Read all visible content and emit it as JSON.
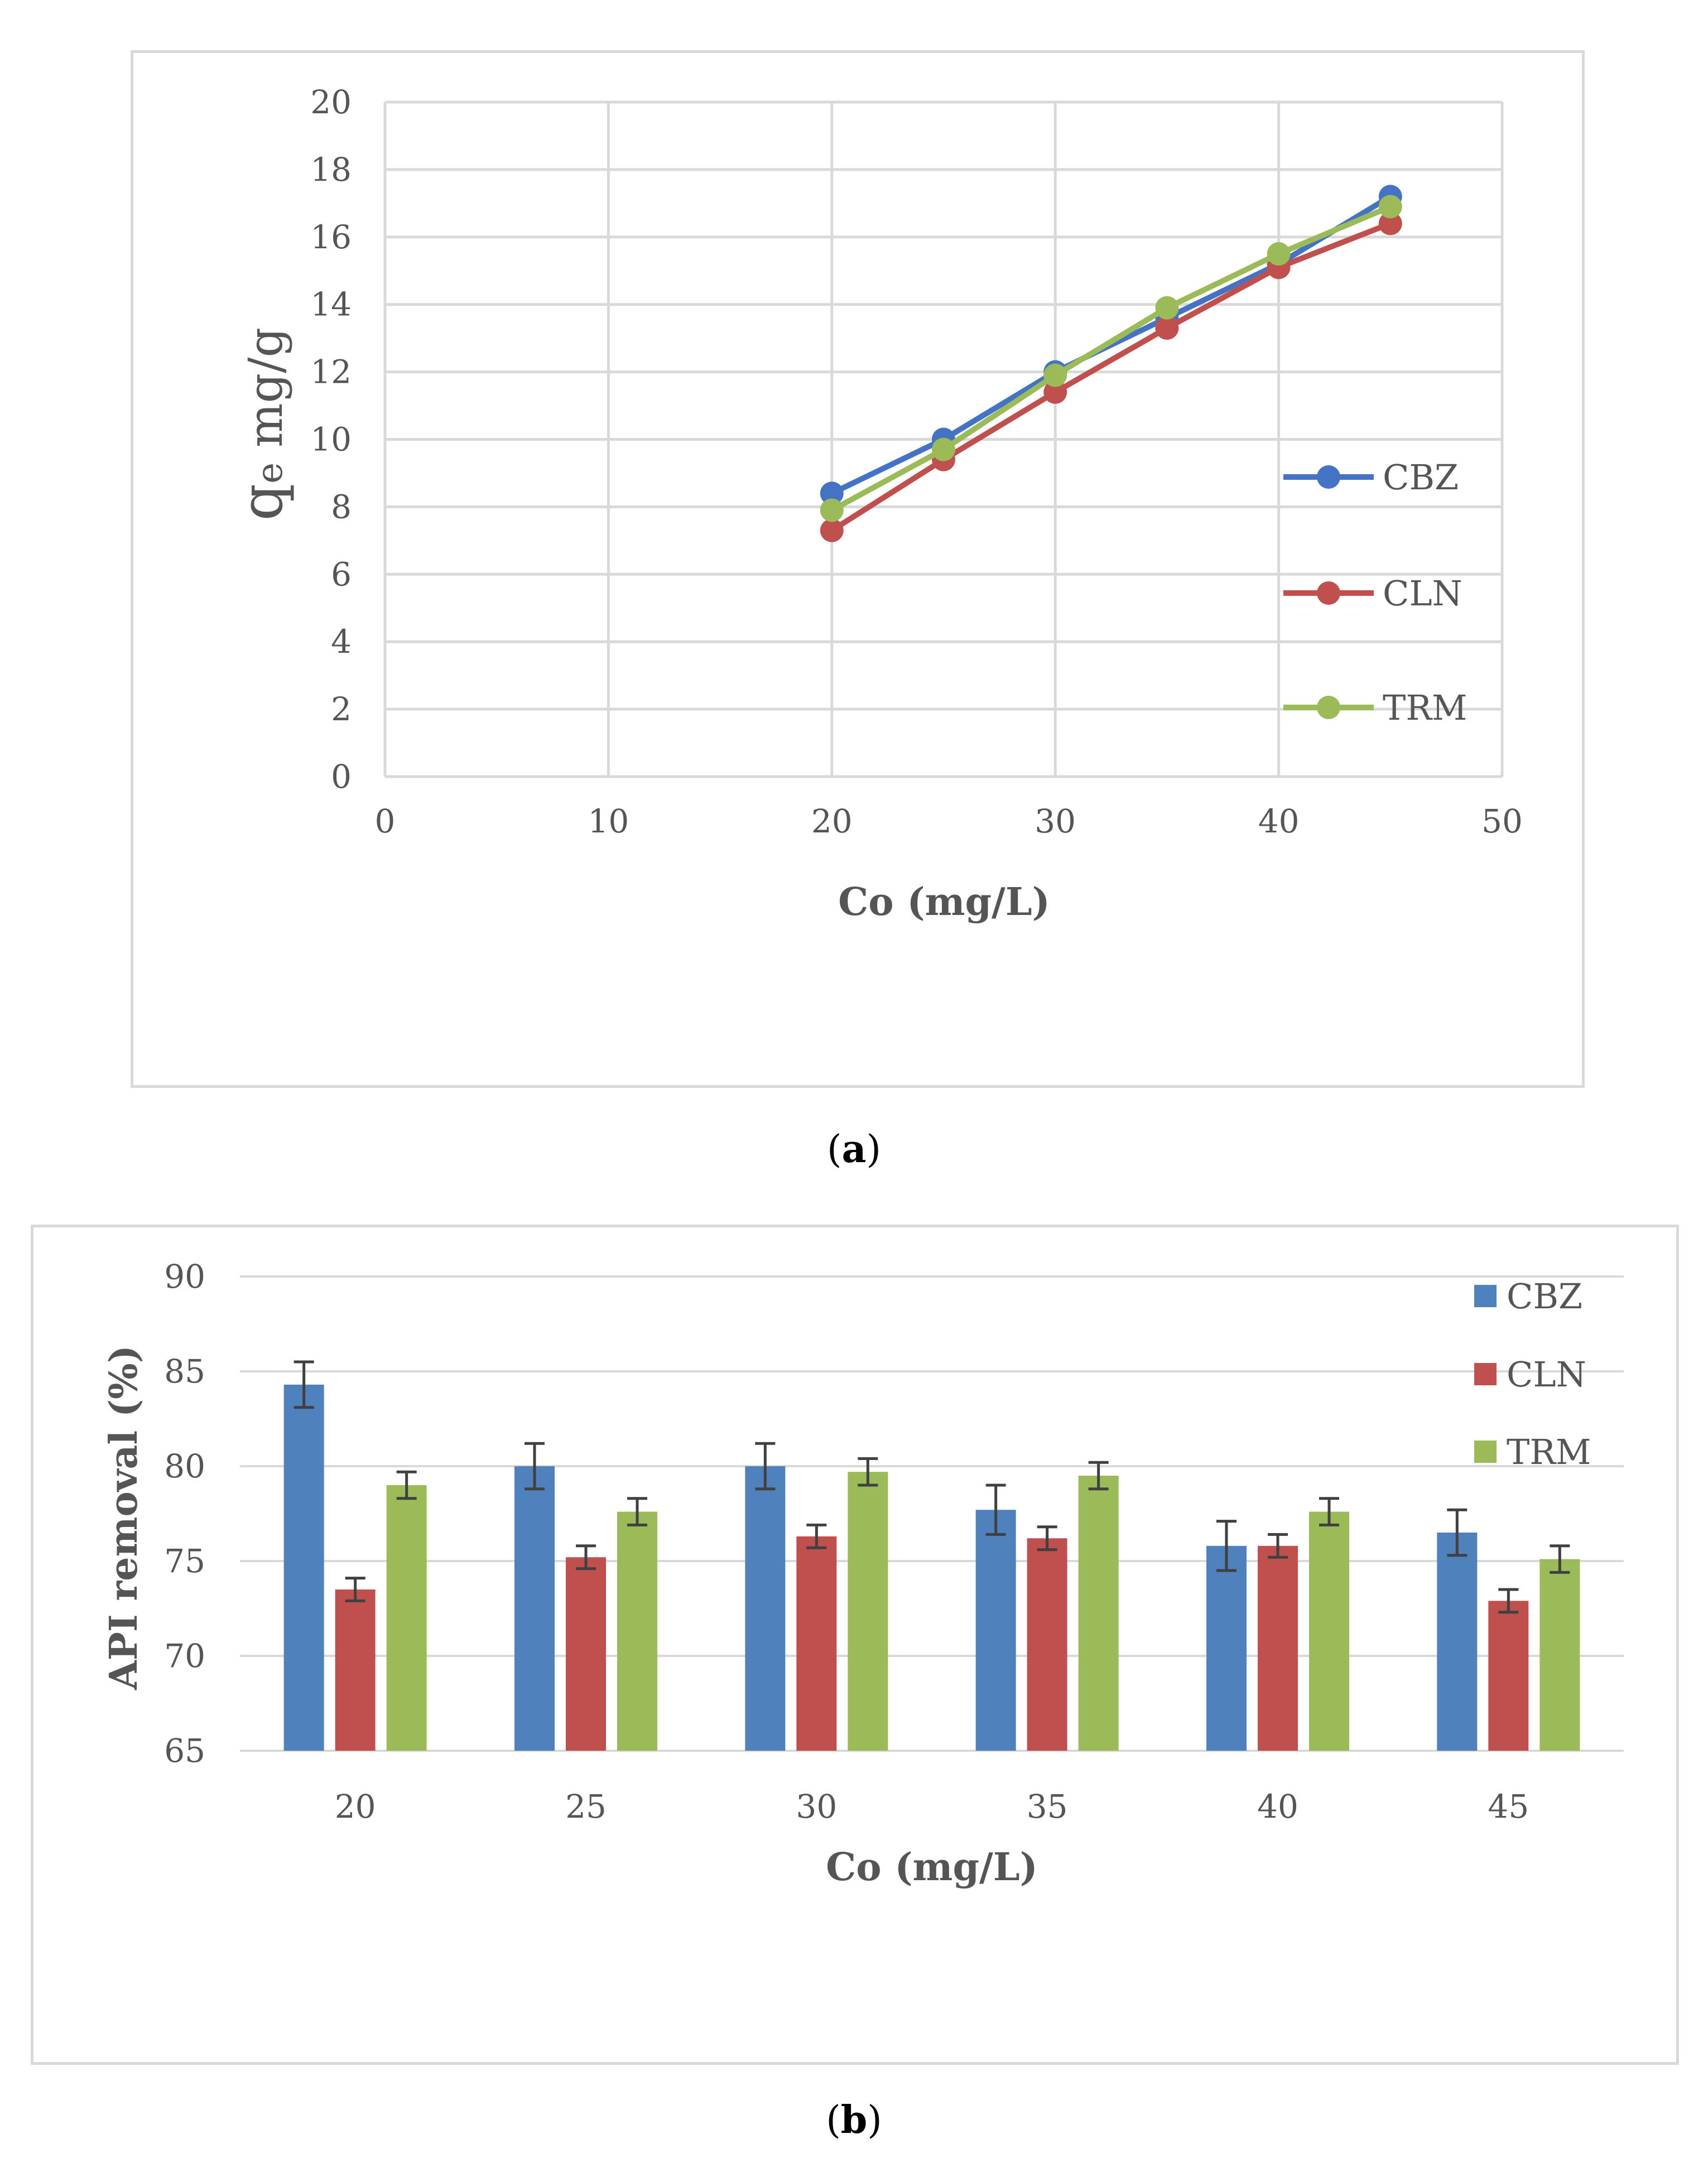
{
  "chart_data": [
    {
      "id": "a",
      "type": "line",
      "xlabel": "Co (mg/L)",
      "ylabel_main": "q",
      "ylabel_sub": "e",
      "ylabel_rest": " mg/g",
      "xlim": [
        0,
        50
      ],
      "ylim": [
        0,
        20
      ],
      "xticks": [
        0,
        10,
        20,
        30,
        40,
        50
      ],
      "yticks": [
        0,
        2,
        4,
        6,
        8,
        10,
        12,
        14,
        16,
        18,
        20
      ],
      "grid": true,
      "legend_position": "right",
      "x": [
        20,
        25,
        30,
        35,
        40,
        45
      ],
      "series": [
        {
          "name": "CBZ",
          "color": "#4472c4",
          "values": [
            8.4,
            10.0,
            12.0,
            13.6,
            15.2,
            17.2
          ]
        },
        {
          "name": "CLN",
          "color": "#c0504d",
          "values": [
            7.3,
            9.4,
            11.4,
            13.3,
            15.1,
            16.4
          ]
        },
        {
          "name": "TRM",
          "color": "#9bbb59",
          "values": [
            7.9,
            9.7,
            11.9,
            13.9,
            15.5,
            16.9
          ]
        }
      ]
    },
    {
      "id": "b",
      "type": "bar",
      "xlabel": "Co (mg/L)",
      "ylabel": "API removal (%)",
      "ylim": [
        65,
        90
      ],
      "yticks": [
        65,
        70,
        75,
        80,
        85,
        90
      ],
      "grid": true,
      "legend_position": "top-right",
      "categories": [
        "20",
        "25",
        "30",
        "35",
        "40",
        "45"
      ],
      "series": [
        {
          "name": "CBZ",
          "color": "#4f81bd",
          "values": [
            84.3,
            80.0,
            80.0,
            77.7,
            75.8,
            76.5
          ],
          "errors": [
            1.2,
            1.2,
            1.2,
            1.3,
            1.3,
            1.2
          ]
        },
        {
          "name": "CLN",
          "color": "#c0504d",
          "values": [
            73.5,
            75.2,
            76.3,
            76.2,
            75.8,
            72.9
          ],
          "errors": [
            0.6,
            0.6,
            0.6,
            0.6,
            0.6,
            0.6
          ]
        },
        {
          "name": "TRM",
          "color": "#9bbb59",
          "values": [
            79.0,
            77.6,
            79.7,
            79.5,
            77.6,
            75.1
          ],
          "errors": [
            0.7,
            0.7,
            0.7,
            0.7,
            0.7,
            0.7
          ]
        }
      ]
    }
  ],
  "captions": {
    "a": "a",
    "b": "b"
  }
}
